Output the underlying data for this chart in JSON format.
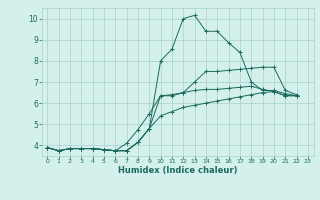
{
  "xlabel": "Humidex (Indice chaleur)",
  "background_color": "#d4f0ec",
  "grid_color": "#aacfca",
  "line_color": "#1a6b5a",
  "text_color": "#1a6b5a",
  "xlim": [
    -0.5,
    23.5
  ],
  "ylim": [
    3.5,
    10.5
  ],
  "xticks": [
    0,
    1,
    2,
    3,
    4,
    5,
    6,
    7,
    8,
    9,
    10,
    11,
    12,
    13,
    14,
    15,
    16,
    17,
    18,
    19,
    20,
    21,
    22,
    23
  ],
  "yticks": [
    4,
    5,
    6,
    7,
    8,
    9,
    10
  ],
  "series": [
    [
      3.9,
      3.75,
      3.85,
      3.85,
      3.85,
      3.8,
      3.75,
      3.75,
      4.15,
      4.8,
      8.0,
      8.55,
      10.0,
      10.15,
      9.4,
      9.4,
      8.85,
      8.4,
      7.0,
      6.6,
      6.6,
      6.45,
      6.35
    ],
    [
      3.9,
      3.75,
      3.85,
      3.85,
      3.85,
      3.8,
      3.75,
      4.1,
      4.75,
      5.5,
      6.35,
      6.4,
      6.5,
      6.6,
      6.65,
      6.65,
      6.7,
      6.75,
      6.8,
      6.65,
      6.55,
      6.35,
      6.35
    ],
    [
      3.9,
      3.75,
      3.85,
      3.85,
      3.85,
      3.8,
      3.75,
      3.75,
      4.15,
      4.8,
      6.35,
      6.35,
      6.5,
      7.0,
      7.5,
      7.5,
      7.55,
      7.6,
      7.65,
      7.7,
      7.7,
      6.6,
      6.4
    ],
    [
      3.9,
      3.75,
      3.85,
      3.85,
      3.85,
      3.8,
      3.75,
      3.75,
      4.15,
      4.8,
      5.4,
      5.6,
      5.8,
      5.9,
      6.0,
      6.1,
      6.2,
      6.3,
      6.4,
      6.5,
      6.55,
      6.35,
      6.35
    ]
  ]
}
